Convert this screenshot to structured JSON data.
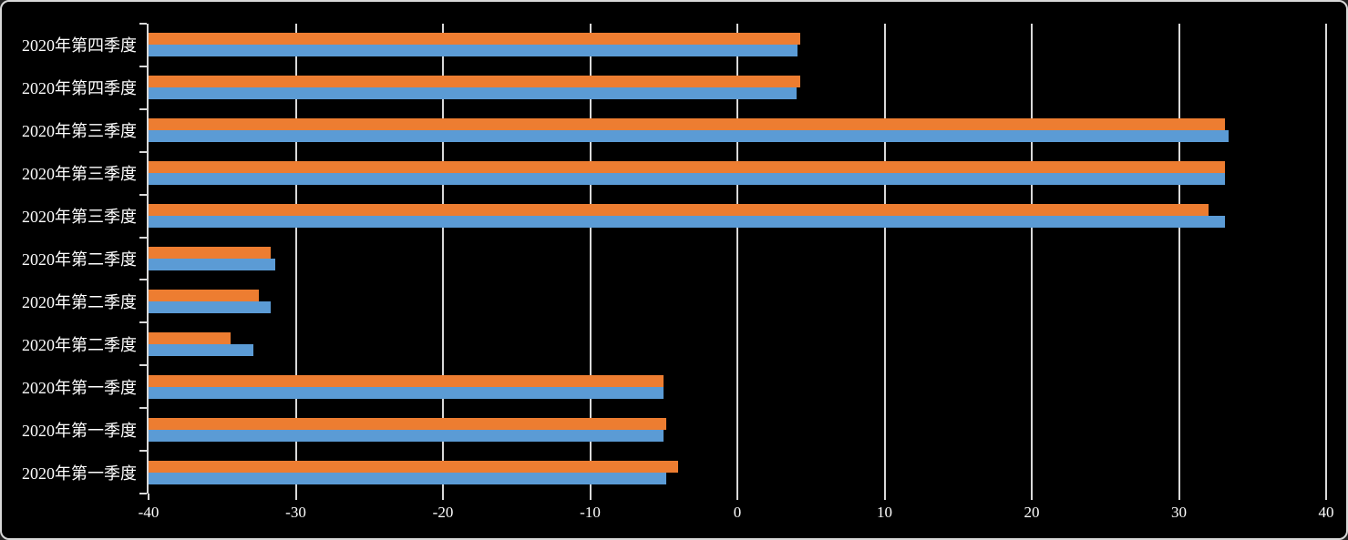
{
  "chart_data": {
    "type": "bar",
    "orientation": "horizontal",
    "title": "",
    "background_color": "#000000",
    "text_color": "#FFFFFF",
    "gridline_color": "#D9D9D9",
    "axis_color": "#D9D9D9",
    "border_color": "#D9D9D9",
    "xlim": [
      -40,
      40
    ],
    "x_ticks": [
      -40,
      -30,
      -20,
      -10,
      0,
      10,
      20,
      30,
      40
    ],
    "x_tick_labels": [
      "-40",
      "-30",
      "-20",
      "-10",
      "0",
      "10",
      "20",
      "30",
      "40"
    ],
    "grid": true,
    "legend": false,
    "bars_start_at_axis_min": true,
    "series": [
      {
        "name": "orange-series",
        "color": "#ED7D31"
      },
      {
        "name": "blue-series",
        "color": "#5B9BD5"
      }
    ],
    "categories": [
      "2020年第四季度",
      "2020年第四季度",
      "2020年第三季度",
      "2020年第三季度",
      "2020年第三季度",
      "2020年第二季度",
      "2020年第二季度",
      "2020年第二季度",
      "2020年第一季度",
      "2020年第一季度",
      "2020年第一季度"
    ],
    "rows": [
      {
        "category": "2020年第四季度",
        "orange": 4.3,
        "blue": 4.1
      },
      {
        "category": "2020年第四季度",
        "orange": 4.3,
        "blue": 4.0
      },
      {
        "category": "2020年第三季度",
        "orange": 33.1,
        "blue": 33.4
      },
      {
        "category": "2020年第三季度",
        "orange": 33.1,
        "blue": 33.1
      },
      {
        "category": "2020年第三季度",
        "orange": 32.0,
        "blue": 33.1
      },
      {
        "category": "2020年第二季度",
        "orange": -31.7,
        "blue": -31.4
      },
      {
        "category": "2020年第二季度",
        "orange": -32.5,
        "blue": -31.7
      },
      {
        "category": "2020年第二季度",
        "orange": -34.4,
        "blue": -32.9
      },
      {
        "category": "2020年第一季度",
        "orange": -5.0,
        "blue": -5.0
      },
      {
        "category": "2020年第一季度",
        "orange": -4.8,
        "blue": -5.0
      },
      {
        "category": "2020年第一季度",
        "orange": -4.0,
        "blue": -4.8
      }
    ]
  }
}
